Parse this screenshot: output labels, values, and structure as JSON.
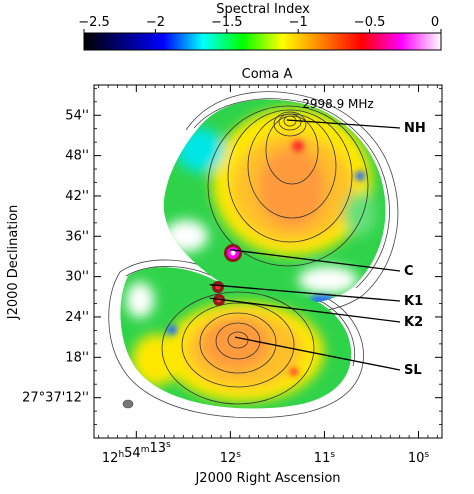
{
  "colorbar": {
    "title": "Spectral Index",
    "ticks": [
      "−2.5",
      "−2",
      "−1.5",
      "−1",
      "−0.5",
      "0"
    ],
    "range": [
      -2.5,
      0
    ],
    "colors": [
      "#000000",
      "#000080",
      "#0000ff",
      "#00ffff",
      "#00ff00",
      "#ffff00",
      "#ff8000",
      "#ff0000",
      "#ff00ff",
      "#ffffff"
    ]
  },
  "panel": {
    "title": "Coma A",
    "frequency": "2998.9 MHz",
    "xlabel": "J2000 Right Ascension",
    "ylabel": "J2000 Declination"
  },
  "axes": {
    "x_ticks": [
      {
        "h": "12",
        "hs": "h",
        "m": "54",
        "ms": "m",
        "s": "13",
        "ss": "s",
        "val": 13
      },
      {
        "s": "12",
        "ss": "s",
        "val": 12
      },
      {
        "s": "11",
        "ss": "s",
        "val": 11
      },
      {
        "s": "10",
        "ss": "s",
        "val": 10
      }
    ],
    "y_ticks": [
      {
        "label": "54''",
        "val": 54
      },
      {
        "label": "48''",
        "val": 48
      },
      {
        "label": "42''",
        "val": 42
      },
      {
        "label": "36''",
        "val": 36
      },
      {
        "label": "30''",
        "val": 30
      },
      {
        "label": "24''",
        "val": 24
      },
      {
        "label": "18''",
        "val": 18
      },
      {
        "label": "27°37'12''",
        "val": 12
      }
    ]
  },
  "annotations": [
    {
      "label": "NH",
      "ra_s": 11.4,
      "dec": 53.3
    },
    {
      "label": "C",
      "ra_s": 12.0,
      "dec": 34.0
    },
    {
      "label": "K1",
      "ra_s": 12.22,
      "dec": 28.8
    },
    {
      "label": "K2",
      "ra_s": 12.22,
      "dec": 26.8
    },
    {
      "label": "SL",
      "ra_s": 11.95,
      "dec": 21.0
    }
  ],
  "chart_data": {
    "type": "heatmap",
    "title": "Coma A",
    "xlabel": "J2000 Right Ascension",
    "ylabel": "J2000 Declination",
    "color_scale": "Spectral Index",
    "color_range": [
      -2.5,
      0
    ],
    "xlim_ra_seconds": [
      13.45,
      9.75
    ],
    "ylim_dec_arcsec": [
      6,
      58.5
    ]
  }
}
